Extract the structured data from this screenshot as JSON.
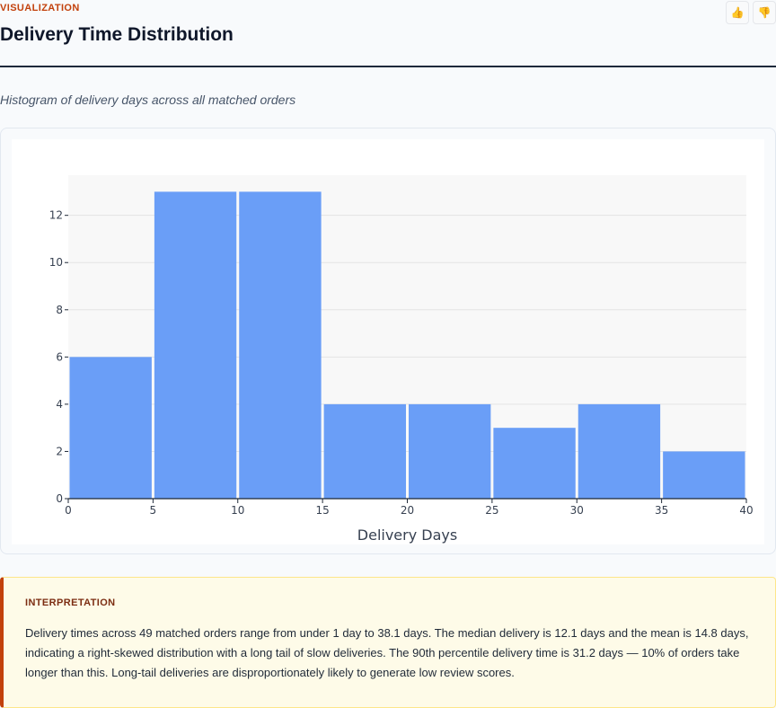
{
  "header": {
    "section_label": "VISUALIZATION",
    "title": "Delivery Time Distribution",
    "subtitle": "Histogram of delivery days across all matched orders",
    "feedback": {
      "up_icon": "thumbs-up-icon",
      "down_icon": "thumbs-down-icon"
    }
  },
  "chart_data": {
    "type": "bar",
    "subtype": "histogram",
    "bin_edges": [
      0,
      5,
      10,
      15,
      20,
      25,
      30,
      35,
      40
    ],
    "values": [
      6,
      13,
      13,
      4,
      4,
      3,
      4,
      2
    ],
    "xlabel": "Delivery Days",
    "ylabel": "",
    "xlim": [
      0,
      40
    ],
    "ylim": [
      0,
      13.7
    ],
    "x_ticks": [
      0,
      5,
      10,
      15,
      20,
      25,
      30,
      35,
      40
    ],
    "y_ticks": [
      0,
      2,
      4,
      6,
      8,
      10,
      12
    ],
    "bar_color": "#6a9ef7",
    "grid": true
  },
  "interpretation": {
    "label": "INTERPRETATION",
    "text": "Delivery times across 49 matched orders range from under 1 day to 38.1 days. The median delivery is 12.1 days and the mean is 14.8 days, indicating a right-skewed distribution with a long tail of slow deliveries. The 90th percentile delivery time is 31.2 days — 10% of orders take longer than this. Long-tail deliveries are disproportionately likely to generate low review scores."
  },
  "colors": {
    "accent": "#c2410c",
    "bar": "#6a9ef7",
    "interp_bg": "#fefbe8"
  }
}
